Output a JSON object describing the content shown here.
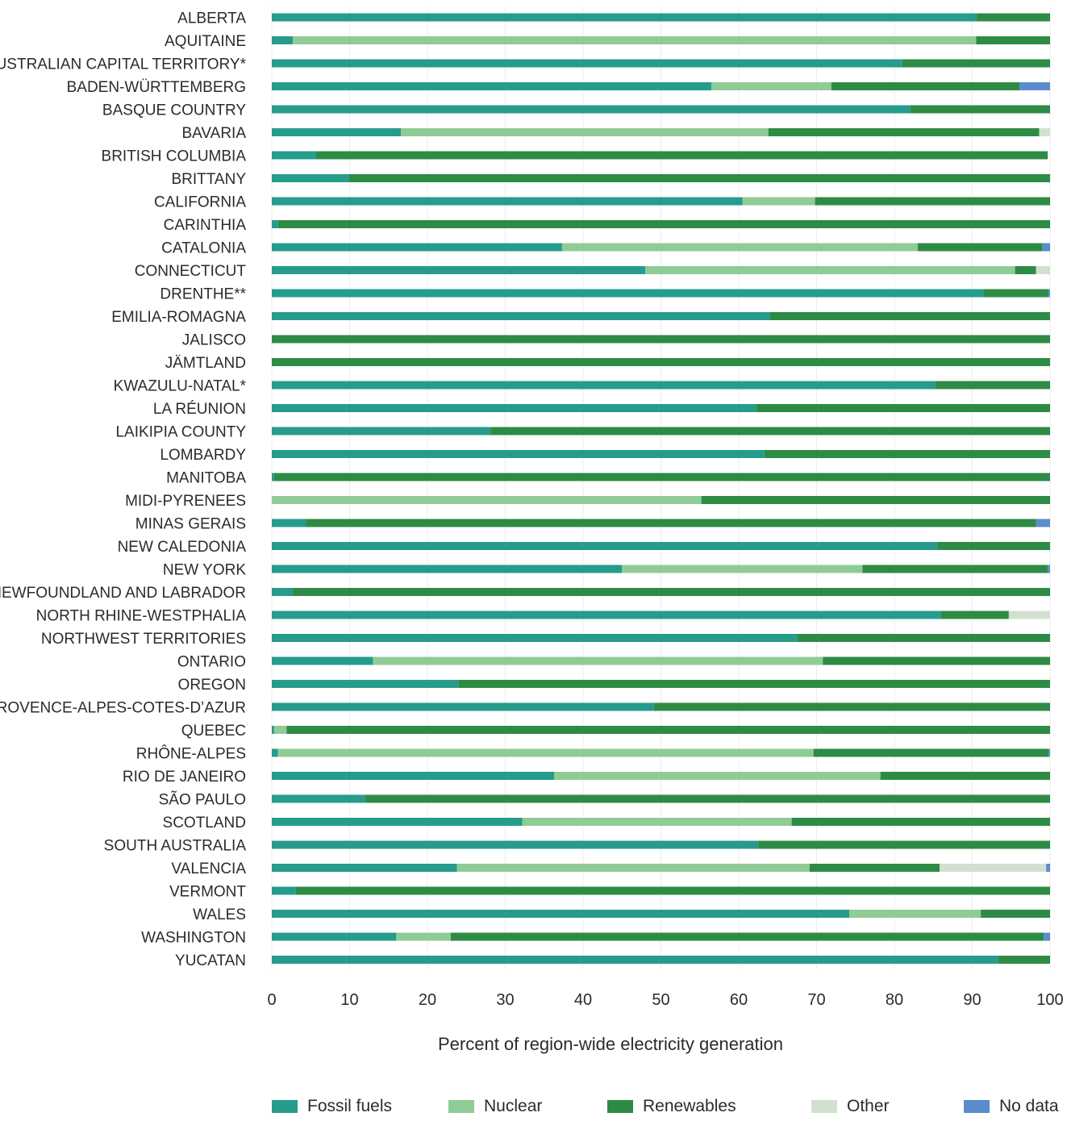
{
  "chart_data": {
    "type": "bar",
    "orientation": "horizontal",
    "stacked": true,
    "xlabel": "Percent of region-wide electricity generation",
    "xlim": [
      0,
      100
    ],
    "xticks": [
      0,
      10,
      20,
      30,
      40,
      50,
      60,
      70,
      80,
      90,
      100
    ],
    "grid": "vertical, light",
    "legend_position": "bottom",
    "categories": [
      "ALBERTA",
      "AQUITAINE",
      "AUSTRALIAN CAPITAL TERRITORY*",
      "BADEN-WÜRTTEMBERG",
      "BASQUE COUNTRY",
      "BAVARIA",
      "BRITISH COLUMBIA",
      "BRITTANY",
      "CALIFORNIA",
      "CARINTHIA",
      "CATALONIA",
      "CONNECTICUT",
      "DRENTHE**",
      "EMILIA-ROMAGNA",
      "JALISCO",
      "JÄMTLAND",
      "KWAZULU-NATAL*",
      "LA RÉUNION",
      "LAIKIPIA COUNTY",
      "LOMBARDY",
      "MANITOBA",
      "MIDI-PYRENEES",
      "MINAS GERAIS",
      "NEW CALEDONIA",
      "NEW YORK",
      "NEWFOUNDLAND AND LABRADOR",
      "NORTH RHINE-WESTPHALIA",
      "NORTHWEST TERRITORIES",
      "ONTARIO",
      "OREGON",
      "PROVENCE-ALPES-COTES-D’AZUR",
      "QUEBEC",
      "RHÔNE-ALPES",
      "RIO DE JANEIRO",
      "SÃO PAULO",
      "SCOTLAND",
      "SOUTH AUSTRALIA",
      "VALENCIA",
      "VERMONT",
      "WALES",
      "WASHINGTON",
      "YUCATAN"
    ],
    "series": [
      {
        "name": "Fossil fuels",
        "color": "#279b8c",
        "values": [
          90.5,
          2.7,
          81,
          56.5,
          82,
          16.6,
          5.7,
          10,
          60.5,
          0.8,
          37.3,
          48,
          91.5,
          64,
          0,
          0,
          85.2,
          62.2,
          28.1,
          63.3,
          0.3,
          0,
          4.4,
          85.5,
          45,
          2.7,
          86,
          67.5,
          13,
          24,
          49.1,
          0.3,
          0.8,
          36.3,
          12,
          32.2,
          62.5,
          23.8,
          3.1,
          74.2,
          16,
          93.3
        ]
      },
      {
        "name": "Nuclear",
        "color": "#8fcc95",
        "values": [
          0,
          87.8,
          0,
          15.4,
          0,
          47.2,
          0,
          0,
          9.3,
          0,
          45.7,
          47.5,
          0,
          0,
          0,
          0,
          0,
          0,
          0,
          0,
          0,
          55.2,
          0,
          0,
          30.9,
          0,
          0,
          0,
          57.8,
          0,
          0,
          1.6,
          68.8,
          41.9,
          0,
          34.6,
          0,
          45.3,
          0,
          16.9,
          7,
          0
        ]
      },
      {
        "name": "Renewables",
        "color": "#2e8b45",
        "values": [
          9.5,
          9.5,
          19,
          24.2,
          18,
          34.8,
          94,
          90,
          30.2,
          99.2,
          16,
          2.7,
          8.3,
          36,
          100,
          100,
          14.8,
          37.8,
          71.9,
          36.7,
          99.7,
          44.8,
          93.8,
          14.5,
          23.8,
          97.3,
          8.7,
          32.5,
          29.2,
          76,
          50.9,
          98.1,
          30.2,
          21.8,
          88,
          33.2,
          37.5,
          16.7,
          96.9,
          8.9,
          76.2,
          6.7
        ]
      },
      {
        "name": "Other",
        "color": "#d2e1cf",
        "values": [
          0,
          0,
          0,
          0,
          0,
          1.4,
          0,
          0,
          0,
          0,
          0,
          1.8,
          0,
          0,
          0,
          0,
          0,
          0,
          0,
          0,
          0,
          0,
          0,
          0,
          0,
          0,
          5.3,
          0,
          0,
          0,
          0,
          0,
          0,
          0,
          0,
          0,
          0,
          13.7,
          0,
          0,
          0,
          0
        ]
      },
      {
        "name": "No data",
        "color": "#5b8ccc",
        "values": [
          0,
          0,
          0,
          3.9,
          0,
          0,
          0,
          0,
          0,
          0,
          1,
          0,
          0.2,
          0,
          0,
          0,
          0,
          0,
          0,
          0,
          0,
          0,
          1.8,
          0,
          0.3,
          0,
          0,
          0,
          0,
          0,
          0,
          0,
          0.2,
          0,
          0,
          0,
          0,
          0.5,
          0,
          0,
          0.8,
          0
        ]
      }
    ]
  }
}
